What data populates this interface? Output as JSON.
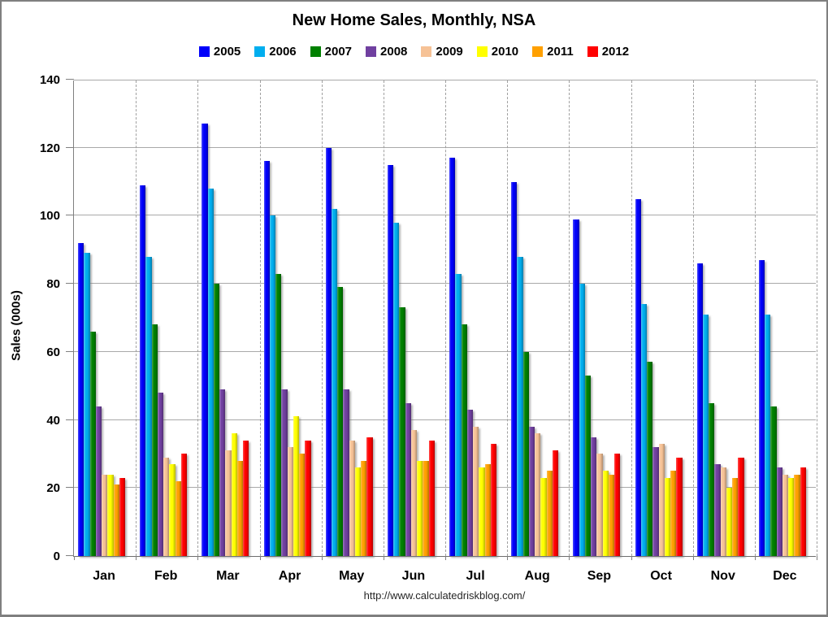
{
  "chart_data": {
    "type": "bar",
    "title": "New Home Sales, Monthly, NSA",
    "ylabel": "Sales (000s)",
    "footer": "http://www.calculatedriskblog.com/",
    "categories": [
      "Jan",
      "Feb",
      "Mar",
      "Apr",
      "May",
      "Jun",
      "Jul",
      "Aug",
      "Sep",
      "Oct",
      "Nov",
      "Dec"
    ],
    "yticks": [
      0,
      20,
      40,
      60,
      80,
      100,
      120,
      140
    ],
    "ylim": [
      0,
      140
    ],
    "legend_position": "top-center",
    "grid": {
      "horizontal": "solid",
      "vertical": "dashed-category-separators"
    },
    "series": [
      {
        "name": "2005",
        "color": "#0000fa",
        "values": [
          92,
          109,
          127,
          116,
          120,
          115,
          117,
          110,
          99,
          105,
          86,
          87
        ]
      },
      {
        "name": "2006",
        "color": "#00aeef",
        "values": [
          89,
          88,
          108,
          100,
          102,
          98,
          83,
          88,
          80,
          74,
          71,
          71
        ]
      },
      {
        "name": "2007",
        "color": "#008000",
        "values": [
          66,
          68,
          80,
          83,
          79,
          73,
          68,
          60,
          53,
          57,
          45,
          44
        ]
      },
      {
        "name": "2008",
        "color": "#7040a0",
        "values": [
          44,
          48,
          49,
          49,
          49,
          45,
          43,
          38,
          35,
          32,
          27,
          26
        ]
      },
      {
        "name": "2009",
        "color": "#f6c296",
        "values": [
          24,
          29,
          31,
          32,
          34,
          37,
          38,
          36,
          30,
          33,
          26,
          24
        ]
      },
      {
        "name": "2010",
        "color": "#ffff00",
        "values": [
          24,
          27,
          36,
          41,
          26,
          28,
          26,
          23,
          25,
          23,
          20,
          23
        ]
      },
      {
        "name": "2011",
        "color": "#ffa000",
        "values": [
          21,
          22,
          28,
          30,
          28,
          28,
          27,
          25,
          24,
          25,
          23,
          24
        ]
      },
      {
        "name": "2012",
        "color": "#ff0000",
        "values": [
          23,
          30,
          34,
          34,
          35,
          34,
          33,
          31,
          30,
          29,
          29,
          26
        ]
      }
    ]
  }
}
